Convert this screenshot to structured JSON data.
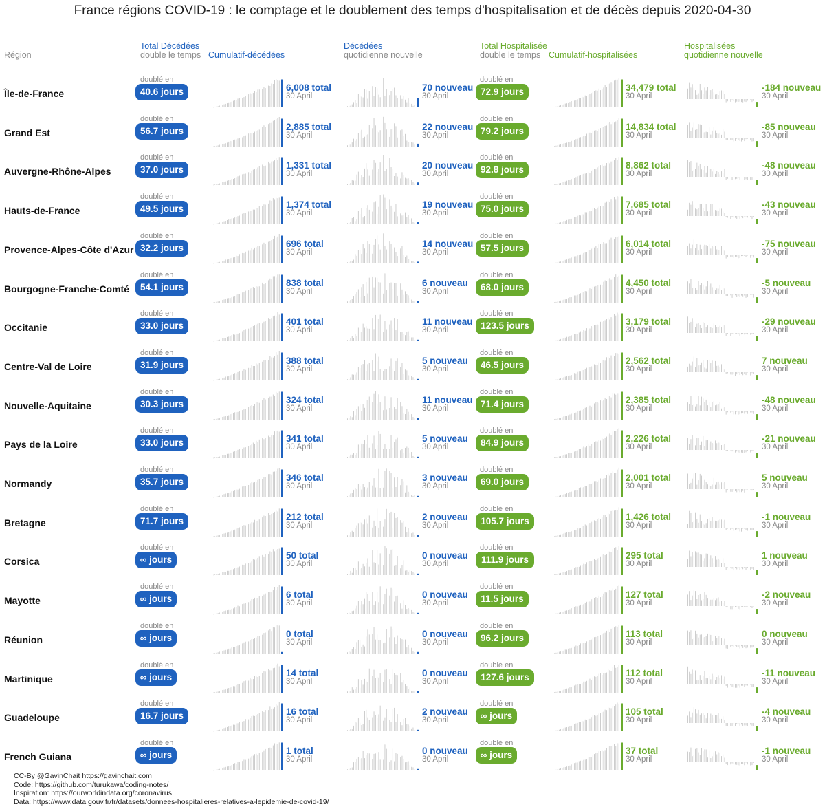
{
  "title": "France régions COVID-19 : le comptage et le doublement des temps d'hospitalisation et de décès depuis 2020-04-30",
  "headers": {
    "region": "Région",
    "deaths_double_1": "Total Décédées",
    "deaths_double_2": "double le temps",
    "deaths_cum": "Cumulatif-décédées",
    "deaths_daily_1": "Décédées",
    "deaths_daily_2": "quotidienne nouvelle",
    "hosp_double_1": "Total Hospitalisée",
    "hosp_double_2": "double le temps",
    "hosp_cum": "Cumulatif-hospitalisées",
    "hosp_daily_1": "Hospitalisées",
    "hosp_daily_2": "quotidienne nouvelle"
  },
  "labels": {
    "doubled_in": "doublé en",
    "date": "30 April"
  },
  "colors": {
    "deaths": "#1f62bf",
    "hosp": "#6aab2e",
    "spark": "#c8c8c8",
    "muted": "#8a8a8a"
  },
  "chart_data": {
    "type": "table",
    "columns": [
      "Région",
      "Total Décédées double le temps",
      "Cumulatif-décédées",
      "Décédées quotidienne nouvelle",
      "Total Hospitalisée double le temps",
      "Cumulatif-hospitalisées",
      "Hospitalisées quotidienne nouvelle"
    ],
    "rows": [
      {
        "region": "Île-de-France",
        "death_double": "40.6 jours",
        "death_total": "6,008 total",
        "death_new": "70 nouveau",
        "hosp_double": "72.9 jours",
        "hosp_total": "34,479 total",
        "hosp_new": "-184 nouveau",
        "death_total_value": 6008,
        "death_new_value": 70,
        "hosp_total_value": 34479,
        "hosp_new_value": -184
      },
      {
        "region": "Grand Est",
        "death_double": "56.7 jours",
        "death_total": "2,885 total",
        "death_new": "22 nouveau",
        "hosp_double": "79.2 jours",
        "hosp_total": "14,834 total",
        "hosp_new": "-85 nouveau",
        "death_total_value": 2885,
        "death_new_value": 22,
        "hosp_total_value": 14834,
        "hosp_new_value": -85
      },
      {
        "region": "Auvergne-Rhône-Alpes",
        "death_double": "37.0 jours",
        "death_total": "1,331 total",
        "death_new": "20 nouveau",
        "hosp_double": "92.8 jours",
        "hosp_total": "8,862 total",
        "hosp_new": "-48 nouveau",
        "death_total_value": 1331,
        "death_new_value": 20,
        "hosp_total_value": 8862,
        "hosp_new_value": -48
      },
      {
        "region": "Hauts-de-France",
        "death_double": "49.5 jours",
        "death_total": "1,374 total",
        "death_new": "19 nouveau",
        "hosp_double": "75.0 jours",
        "hosp_total": "7,685 total",
        "hosp_new": "-43 nouveau",
        "death_total_value": 1374,
        "death_new_value": 19,
        "hosp_total_value": 7685,
        "hosp_new_value": -43
      },
      {
        "region": "Provence-Alpes-Côte d'Azur",
        "death_double": "32.2 jours",
        "death_total": "696 total",
        "death_new": "14 nouveau",
        "hosp_double": "57.5 jours",
        "hosp_total": "6,014 total",
        "hosp_new": "-75 nouveau",
        "death_total_value": 696,
        "death_new_value": 14,
        "hosp_total_value": 6014,
        "hosp_new_value": -75
      },
      {
        "region": "Bourgogne-Franche-Comté",
        "death_double": "54.1 jours",
        "death_total": "838 total",
        "death_new": "6 nouveau",
        "hosp_double": "68.0 jours",
        "hosp_total": "4,450 total",
        "hosp_new": "-5 nouveau",
        "death_total_value": 838,
        "death_new_value": 6,
        "hosp_total_value": 4450,
        "hosp_new_value": -5
      },
      {
        "region": "Occitanie",
        "death_double": "33.0 jours",
        "death_total": "401 total",
        "death_new": "11 nouveau",
        "hosp_double": "123.5 jours",
        "hosp_total": "3,179 total",
        "hosp_new": "-29 nouveau",
        "death_total_value": 401,
        "death_new_value": 11,
        "hosp_total_value": 3179,
        "hosp_new_value": -29
      },
      {
        "region": "Centre-Val de Loire",
        "death_double": "31.9 jours",
        "death_total": "388 total",
        "death_new": "5 nouveau",
        "hosp_double": "46.5 jours",
        "hosp_total": "2,562 total",
        "hosp_new": "7 nouveau",
        "death_total_value": 388,
        "death_new_value": 5,
        "hosp_total_value": 2562,
        "hosp_new_value": 7
      },
      {
        "region": "Nouvelle-Aquitaine",
        "death_double": "30.3 jours",
        "death_total": "324 total",
        "death_new": "11 nouveau",
        "hosp_double": "71.4 jours",
        "hosp_total": "2,385 total",
        "hosp_new": "-48 nouveau",
        "death_total_value": 324,
        "death_new_value": 11,
        "hosp_total_value": 2385,
        "hosp_new_value": -48
      },
      {
        "region": "Pays de la Loire",
        "death_double": "33.0 jours",
        "death_total": "341 total",
        "death_new": "5 nouveau",
        "hosp_double": "84.9 jours",
        "hosp_total": "2,226 total",
        "hosp_new": "-21 nouveau",
        "death_total_value": 341,
        "death_new_value": 5,
        "hosp_total_value": 2226,
        "hosp_new_value": -21
      },
      {
        "region": "Normandy",
        "death_double": "35.7 jours",
        "death_total": "346 total",
        "death_new": "3 nouveau",
        "hosp_double": "69.0 jours",
        "hosp_total": "2,001 total",
        "hosp_new": "5 nouveau",
        "death_total_value": 346,
        "death_new_value": 3,
        "hosp_total_value": 2001,
        "hosp_new_value": 5
      },
      {
        "region": "Bretagne",
        "death_double": "71.7 jours",
        "death_total": "212 total",
        "death_new": "2 nouveau",
        "hosp_double": "105.7 jours",
        "hosp_total": "1,426 total",
        "hosp_new": "-1 nouveau",
        "death_total_value": 212,
        "death_new_value": 2,
        "hosp_total_value": 1426,
        "hosp_new_value": -1
      },
      {
        "region": "Corsica",
        "death_double": "∞ jours",
        "death_total": "50 total",
        "death_new": "0 nouveau",
        "hosp_double": "111.9 jours",
        "hosp_total": "295 total",
        "hosp_new": "1 nouveau",
        "death_total_value": 50,
        "death_new_value": 0,
        "hosp_total_value": 295,
        "hosp_new_value": 1
      },
      {
        "region": "Mayotte",
        "death_double": "∞ jours",
        "death_total": "6 total",
        "death_new": "0 nouveau",
        "hosp_double": "11.5 jours",
        "hosp_total": "127 total",
        "hosp_new": "-2 nouveau",
        "death_total_value": 6,
        "death_new_value": 0,
        "hosp_total_value": 127,
        "hosp_new_value": -2
      },
      {
        "region": "Réunion",
        "death_double": "∞ jours",
        "death_total": "0 total",
        "death_new": "0 nouveau",
        "hosp_double": "96.2 jours",
        "hosp_total": "113 total",
        "hosp_new": "0 nouveau",
        "death_total_value": 0,
        "death_new_value": 0,
        "hosp_total_value": 113,
        "hosp_new_value": 0
      },
      {
        "region": "Martinique",
        "death_double": "∞ jours",
        "death_total": "14 total",
        "death_new": "0 nouveau",
        "hosp_double": "127.6 jours",
        "hosp_total": "112 total",
        "hosp_new": "-11 nouveau",
        "death_total_value": 14,
        "death_new_value": 0,
        "hosp_total_value": 112,
        "hosp_new_value": -11
      },
      {
        "region": "Guadeloupe",
        "death_double": "16.7 jours",
        "death_total": "16 total",
        "death_new": "2 nouveau",
        "hosp_double": "∞ jours",
        "hosp_total": "105 total",
        "hosp_new": "-4 nouveau",
        "death_total_value": 16,
        "death_new_value": 2,
        "hosp_total_value": 105,
        "hosp_new_value": -4
      },
      {
        "region": "French Guiana",
        "death_double": "∞ jours",
        "death_total": "1 total",
        "death_new": "0 nouveau",
        "hosp_double": "∞ jours",
        "hosp_total": "37 total",
        "hosp_new": "-1 nouveau",
        "death_total_value": 1,
        "death_new_value": 0,
        "hosp_total_value": 37,
        "hosp_new_value": -1
      }
    ]
  },
  "footer": [
    "CC-By @GavinChait https://gavinchait.com",
    "Code: https://github.com/turukawa/coding-notes/",
    "Inspiration: https://ourworldindata.org/coronavirus",
    "Data: https://www.data.gouv.fr/fr/datasets/donnees-hospitalieres-relatives-a-lepidemie-de-covid-19/"
  ]
}
